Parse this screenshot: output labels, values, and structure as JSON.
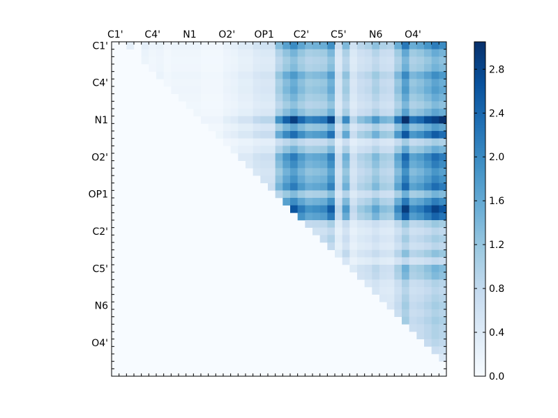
{
  "chart_data": {
    "type": "heatmap",
    "title": "",
    "xlabel": "",
    "ylabel": "",
    "x_tick_labels": [
      "C1'",
      "C4'",
      "N1",
      "O2'",
      "OP1",
      "C2'",
      "C5'",
      "N6",
      "O4'"
    ],
    "y_tick_labels": [
      "C1'",
      "C4'",
      "N1",
      "O2'",
      "OP1",
      "C2'",
      "C5'",
      "N6",
      "O4'"
    ],
    "grid_size": 45,
    "tick_every": 5,
    "colormap": [
      "#f7fbff",
      "#deebf7",
      "#c6dbef",
      "#9ecae1",
      "#6baed6",
      "#4292c6",
      "#2171b5",
      "#08519c",
      "#08306b"
    ],
    "value_range": [
      0.0,
      3.05
    ],
    "colorbar": {
      "ticks": [
        0.0,
        0.4,
        0.8,
        1.2,
        1.6,
        2.0,
        2.4,
        2.8
      ],
      "tick_labels": [
        "0.0",
        "0.4",
        "0.8",
        "1.2",
        "1.6",
        "2.0",
        "2.4",
        "2.8"
      ],
      "position": "right"
    },
    "grid": false,
    "structure": "upper-triangular",
    "column_profile": {
      "cols": [
        2,
        4,
        5,
        6,
        7,
        8,
        9,
        10,
        11,
        12,
        13,
        14,
        15,
        16,
        17,
        18,
        19,
        20,
        21,
        22,
        23,
        24,
        25,
        26,
        27,
        28,
        29,
        30,
        31,
        32,
        33,
        34,
        35,
        36,
        37,
        38,
        39,
        40,
        41,
        42,
        43,
        44
      ],
      "values": [
        0.25,
        0.25,
        0.15,
        0.2,
        0.1,
        0.15,
        0.15,
        0.15,
        0.15,
        0.1,
        0.1,
        0.1,
        0.2,
        0.25,
        0.35,
        0.35,
        0.5,
        0.55,
        0.55,
        1.2,
        1.55,
        1.8,
        1.5,
        1.3,
        1.35,
        1.4,
        1.75,
        0.6,
        1.25,
        0.55,
        0.8,
        0.9,
        1.15,
        0.9,
        0.85,
        1.4,
        2.0,
        1.4,
        1.5,
        1.7,
        1.95,
        1.8
      ]
    },
    "row_profile": {
      "rows": [
        0,
        1,
        2,
        3,
        4,
        5,
        6,
        7,
        8,
        9,
        10,
        11,
        12,
        13,
        14,
        15,
        16,
        17,
        18,
        19,
        20,
        21,
        22,
        23,
        24,
        25,
        26,
        27,
        28,
        29,
        30,
        31,
        32,
        33,
        34,
        35,
        36,
        37,
        38,
        39,
        40,
        41,
        42,
        43,
        44
      ],
      "values": [
        1.1,
        0.8,
        0.7,
        0.75,
        1.0,
        0.85,
        0.9,
        0.8,
        0.7,
        0.85,
        1.6,
        0.9,
        1.3,
        0.55,
        0.8,
        1.2,
        1.1,
        0.95,
        1.05,
        1.2,
        0.75,
        1.1,
        1.45,
        1.25,
        0.6,
        0.45,
        0.55,
        0.45,
        0.65,
        0.4,
        0.75,
        0.7,
        0.5,
        0.45,
        0.5,
        0.55,
        0.5,
        0.55,
        0.5,
        0.5,
        0.45,
        0.35,
        0.25,
        0.2,
        0.1
      ]
    },
    "peak_value": 3.0
  }
}
